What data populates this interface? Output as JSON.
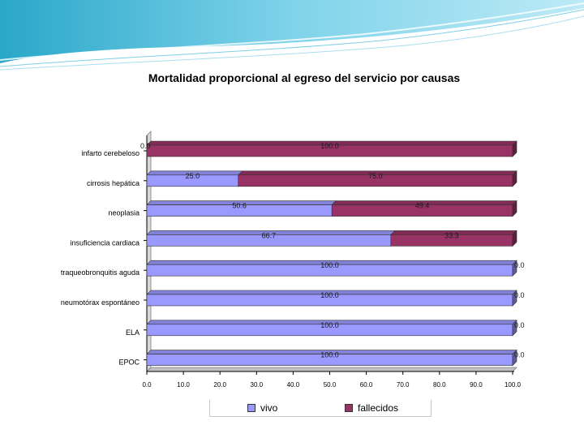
{
  "chart_data": {
    "type": "bar",
    "orientation": "horizontal",
    "stacked": true,
    "title": "Mortalidad proporcional al egreso del servicio por causas",
    "categories": [
      "infarto cerebeloso",
      "cirrosis hepática",
      "neoplasia",
      "insuficiencia cardiaca",
      "traqueobronquitis aguda",
      "neumotórax espontáneo",
      "ELA",
      "EPOC"
    ],
    "series": [
      {
        "name": "vivo",
        "color": "#9999ff",
        "values": [
          0.0,
          25.0,
          50.6,
          66.7,
          100.0,
          100.0,
          100.0,
          100.0
        ],
        "labels": [
          "0.0",
          "25.0",
          "50.6",
          "66.7",
          "100.0",
          "100.0",
          "100.0",
          "100.0"
        ]
      },
      {
        "name": "fallecidos",
        "color": "#993366",
        "values": [
          100.0,
          75.0,
          49.4,
          33.3,
          0.0,
          0.0,
          0.0,
          0.0
        ],
        "labels": [
          "100.0",
          "75.0",
          "49.4",
          "33.3",
          "0.0",
          "0.0",
          "0.0",
          "0.0"
        ]
      }
    ],
    "xlim": [
      0,
      100
    ],
    "x_ticks": [
      "0.0",
      "10.0",
      "20.0",
      "30.0",
      "40.0",
      "50.0",
      "60.0",
      "70.0",
      "80.0",
      "90.0",
      "100.0"
    ],
    "grid": false,
    "legend_position": "bottom"
  }
}
